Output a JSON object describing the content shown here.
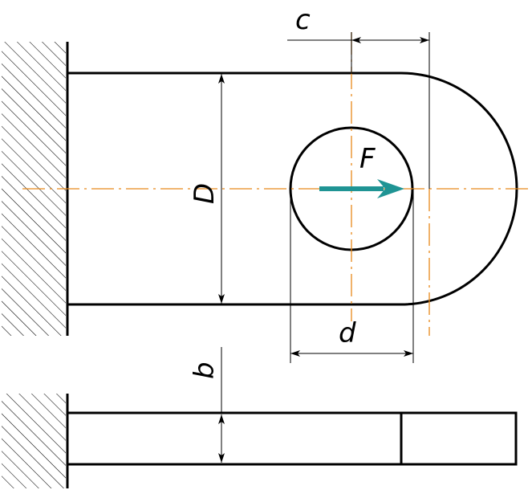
{
  "labels": {
    "c": "c",
    "D": "D",
    "F": "F",
    "d": "d",
    "b": "b"
  },
  "colors": {
    "outline": "#000000",
    "centerline": "#e8891a",
    "force_arrow": "#1f9494",
    "background": "#ffffff"
  }
}
